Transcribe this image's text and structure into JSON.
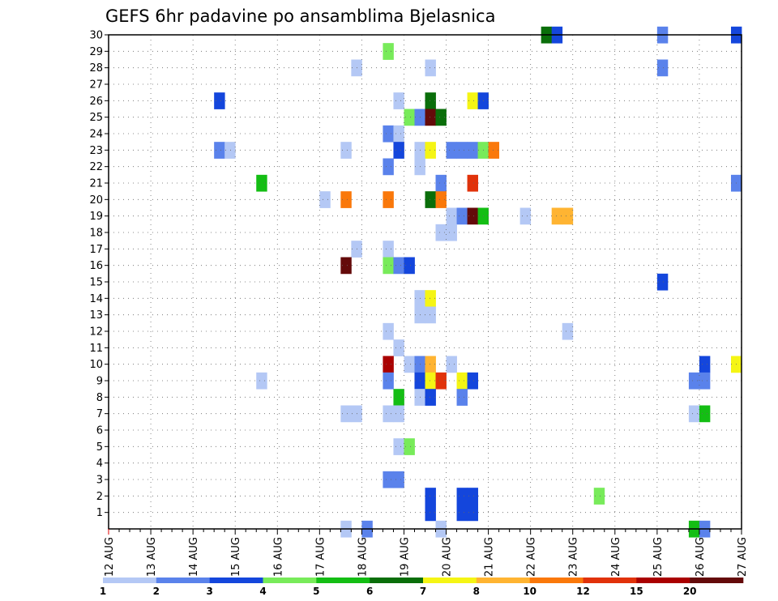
{
  "chart_data": {
    "type": "heatmap",
    "title": "GEFS 6hr padavine po ansamblima Bjelasnica",
    "xlabel": "",
    "ylabel": "",
    "x_unit": "6h steps from 12 AUG 00Z",
    "x_ticks": [
      "12 AUG",
      "13 AUG",
      "14 AUG",
      "15 AUG",
      "16 AUG",
      "17 AUG",
      "18 AUG",
      "19 AUG",
      "20 AUG",
      "21 AUG",
      "22 AUG",
      "23 AUG",
      "24 AUG",
      "25 AUG",
      "26 AUG",
      "27 AUG"
    ],
    "y_ticks": [
      1,
      2,
      3,
      4,
      5,
      6,
      7,
      8,
      9,
      10,
      11,
      12,
      13,
      14,
      15,
      16,
      17,
      18,
      19,
      20,
      21,
      22,
      23,
      24,
      25,
      26,
      27,
      28,
      29,
      30
    ],
    "ylim": [
      0,
      30
    ],
    "grid": true,
    "legend": {
      "placement": "bottom",
      "labels": [
        "1",
        "2",
        "3",
        "4",
        "5",
        "6",
        "7",
        "8",
        "10",
        "12",
        "15",
        "20"
      ],
      "colors": [
        "#b4c8f5",
        "#5a82eb",
        "#1446dc",
        "#78eb5a",
        "#14be14",
        "#0a6e0a",
        "#f5f514",
        "#ffb432",
        "#fa780a",
        "#e1320a",
        "#aa0000",
        "#640a0a"
      ]
    },
    "points": [
      {
        "x": 41.5,
        "y": 30,
        "c": 5
      },
      {
        "x": 42.5,
        "y": 30,
        "c": 2
      },
      {
        "x": 52.5,
        "y": 30,
        "c": 1
      },
      {
        "x": 59.5,
        "y": 30,
        "c": 2
      },
      {
        "x": 26.5,
        "y": 29,
        "c": 3
      },
      {
        "x": 23.5,
        "y": 28,
        "c": 0
      },
      {
        "x": 30.5,
        "y": 28,
        "c": 0
      },
      {
        "x": 52.5,
        "y": 28,
        "c": 1
      },
      {
        "x": 10.5,
        "y": 26,
        "c": 2
      },
      {
        "x": 27.5,
        "y": 26,
        "c": 0
      },
      {
        "x": 30.5,
        "y": 26,
        "c": 5
      },
      {
        "x": 34.5,
        "y": 26,
        "c": 6
      },
      {
        "x": 35.5,
        "y": 26,
        "c": 2
      },
      {
        "x": 28.5,
        "y": 25,
        "c": 3
      },
      {
        "x": 29.5,
        "y": 25,
        "c": 1
      },
      {
        "x": 30.5,
        "y": 25,
        "c": 11
      },
      {
        "x": 31.5,
        "y": 25,
        "c": 5
      },
      {
        "x": 26.5,
        "y": 24,
        "c": 1
      },
      {
        "x": 27.5,
        "y": 24,
        "c": 0
      },
      {
        "x": 10.5,
        "y": 23,
        "c": 1
      },
      {
        "x": 11.5,
        "y": 23,
        "c": 0
      },
      {
        "x": 22.5,
        "y": 23,
        "c": 0
      },
      {
        "x": 27.5,
        "y": 23,
        "c": 2
      },
      {
        "x": 29.5,
        "y": 23,
        "c": 0
      },
      {
        "x": 30.5,
        "y": 23,
        "c": 6
      },
      {
        "x": 32.5,
        "y": 23,
        "c": 1
      },
      {
        "x": 33.5,
        "y": 23,
        "c": 1
      },
      {
        "x": 34.5,
        "y": 23,
        "c": 1
      },
      {
        "x": 35.5,
        "y": 23,
        "c": 3
      },
      {
        "x": 36.5,
        "y": 23,
        "c": 8
      },
      {
        "x": 26.5,
        "y": 22,
        "c": 1
      },
      {
        "x": 29.5,
        "y": 22,
        "c": 0
      },
      {
        "x": 14.5,
        "y": 21,
        "c": 4
      },
      {
        "x": 31.5,
        "y": 21,
        "c": 1
      },
      {
        "x": 34.5,
        "y": 21,
        "c": 9
      },
      {
        "x": 59.5,
        "y": 21,
        "c": 1
      },
      {
        "x": 20.5,
        "y": 20,
        "c": 0
      },
      {
        "x": 22.5,
        "y": 20,
        "c": 8
      },
      {
        "x": 26.5,
        "y": 20,
        "c": 8
      },
      {
        "x": 30.5,
        "y": 20,
        "c": 5
      },
      {
        "x": 31.5,
        "y": 20,
        "c": 8
      },
      {
        "x": 32.5,
        "y": 19,
        "c": 0
      },
      {
        "x": 33.5,
        "y": 19,
        "c": 1
      },
      {
        "x": 34.5,
        "y": 19,
        "c": 11
      },
      {
        "x": 35.5,
        "y": 19,
        "c": 4
      },
      {
        "x": 39.5,
        "y": 19,
        "c": 0
      },
      {
        "x": 42.5,
        "y": 19,
        "c": 7
      },
      {
        "x": 43.5,
        "y": 19,
        "c": 7
      },
      {
        "x": 31.5,
        "y": 18,
        "c": 0
      },
      {
        "x": 32.5,
        "y": 18,
        "c": 0
      },
      {
        "x": 23.5,
        "y": 17,
        "c": 0
      },
      {
        "x": 26.5,
        "y": 17,
        "c": 0
      },
      {
        "x": 22.5,
        "y": 16,
        "c": 11
      },
      {
        "x": 26.5,
        "y": 16,
        "c": 3
      },
      {
        "x": 27.5,
        "y": 16,
        "c": 1
      },
      {
        "x": 28.5,
        "y": 16,
        "c": 2
      },
      {
        "x": 52.5,
        "y": 15,
        "c": 2
      },
      {
        "x": 29.5,
        "y": 14,
        "c": 0
      },
      {
        "x": 30.5,
        "y": 14,
        "c": 6
      },
      {
        "x": 29.5,
        "y": 13,
        "c": 0
      },
      {
        "x": 30.5,
        "y": 13,
        "c": 0
      },
      {
        "x": 26.5,
        "y": 12,
        "c": 0
      },
      {
        "x": 43.5,
        "y": 12,
        "c": 0
      },
      {
        "x": 27.5,
        "y": 11,
        "c": 0
      },
      {
        "x": 26.5,
        "y": 10,
        "c": 10
      },
      {
        "x": 28.5,
        "y": 10,
        "c": 0
      },
      {
        "x": 29.5,
        "y": 10,
        "c": 1
      },
      {
        "x": 30.5,
        "y": 10,
        "c": 7
      },
      {
        "x": 32.5,
        "y": 10,
        "c": 0
      },
      {
        "x": 56.5,
        "y": 10,
        "c": 2
      },
      {
        "x": 59.5,
        "y": 10,
        "c": 6
      },
      {
        "x": 14.5,
        "y": 9,
        "c": 0
      },
      {
        "x": 26.5,
        "y": 9,
        "c": 1
      },
      {
        "x": 29.5,
        "y": 9,
        "c": 2
      },
      {
        "x": 30.5,
        "y": 9,
        "c": 6
      },
      {
        "x": 31.5,
        "y": 9,
        "c": 9
      },
      {
        "x": 33.5,
        "y": 9,
        "c": 6
      },
      {
        "x": 34.5,
        "y": 9,
        "c": 2
      },
      {
        "x": 55.5,
        "y": 9,
        "c": 1
      },
      {
        "x": 56.5,
        "y": 9,
        "c": 1
      },
      {
        "x": 27.5,
        "y": 8,
        "c": 4
      },
      {
        "x": 29.5,
        "y": 8,
        "c": 0
      },
      {
        "x": 30.5,
        "y": 8,
        "c": 2
      },
      {
        "x": 33.5,
        "y": 8,
        "c": 1
      },
      {
        "x": 22.5,
        "y": 7,
        "c": 0
      },
      {
        "x": 23.5,
        "y": 7,
        "c": 0
      },
      {
        "x": 26.5,
        "y": 7,
        "c": 0
      },
      {
        "x": 27.5,
        "y": 7,
        "c": 0
      },
      {
        "x": 55.5,
        "y": 7,
        "c": 0
      },
      {
        "x": 56.5,
        "y": 7,
        "c": 4
      },
      {
        "x": 27.5,
        "y": 5,
        "c": 0
      },
      {
        "x": 28.5,
        "y": 5,
        "c": 3
      },
      {
        "x": 26.5,
        "y": 3,
        "c": 1
      },
      {
        "x": 27.5,
        "y": 3,
        "c": 1
      },
      {
        "x": 30.5,
        "y": 2,
        "c": 2
      },
      {
        "x": 33.5,
        "y": 2,
        "c": 2
      },
      {
        "x": 34.5,
        "y": 2,
        "c": 2
      },
      {
        "x": 46.5,
        "y": 2,
        "c": 3
      },
      {
        "x": 30.5,
        "y": 1,
        "c": 2
      },
      {
        "x": 33.5,
        "y": 1,
        "c": 2
      },
      {
        "x": 34.5,
        "y": 1,
        "c": 2
      },
      {
        "x": 22.5,
        "y": 0,
        "c": 0
      },
      {
        "x": 24.5,
        "y": 0,
        "c": 1
      },
      {
        "x": 31.5,
        "y": 0,
        "c": 0
      },
      {
        "x": 55.5,
        "y": 0,
        "c": 4
      },
      {
        "x": 56.5,
        "y": 0,
        "c": 1
      }
    ]
  }
}
